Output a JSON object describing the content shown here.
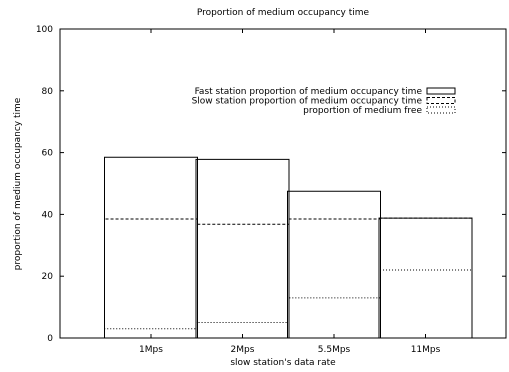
{
  "chart_data": {
    "type": "bar",
    "title": "Proportion of medium occupancy time",
    "xlabel": "slow station's data rate",
    "ylabel": "proportion of medium occupancy time",
    "categories": [
      "1Mps",
      "2Mps",
      "5.5Mps",
      "11Mps"
    ],
    "ylim": [
      0,
      100
    ],
    "yticks": [
      0,
      20,
      40,
      60,
      80,
      100
    ],
    "grid": false,
    "legend_position": "top-right",
    "series": [
      {
        "name": "Fast station proportion of medium occupancy time",
        "style": "solid",
        "values": [
          58.5,
          57.8,
          47.5,
          38.8
        ]
      },
      {
        "name": "Slow station proportion of medium occupancy time",
        "style": "dashed",
        "values": [
          38.5,
          36.8,
          38.5,
          38.8
        ]
      },
      {
        "name": "proportion of medium free",
        "style": "dotted",
        "values": [
          3.0,
          5.0,
          13.0,
          22.0
        ]
      }
    ]
  }
}
